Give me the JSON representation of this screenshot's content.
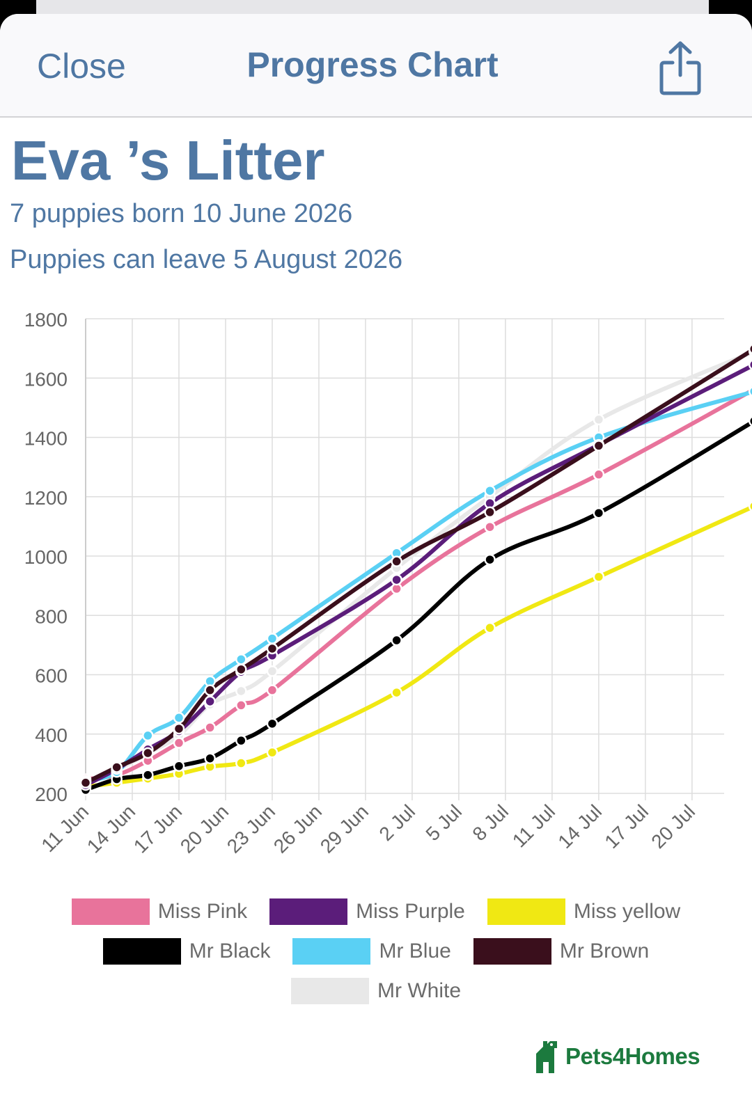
{
  "nav": {
    "close_label": "Close",
    "title": "Progress Chart",
    "share_icon": "share-icon",
    "accent_color": "#4f77a3"
  },
  "header": {
    "litter_title": "Eva ’s Litter",
    "born_text": "7 puppies born 10 June 2026",
    "leave_text": "Puppies can leave 5 August 2026"
  },
  "brand": {
    "name": "Pets4Homes",
    "logo_icon": "pets4homes-logo-icon",
    "color": "#1c7a3e"
  },
  "chart_data": {
    "type": "line",
    "title": "",
    "xlabel": "",
    "ylabel": "",
    "ylim": [
      200,
      1800
    ],
    "yticks": [
      200,
      400,
      600,
      800,
      1000,
      1200,
      1400,
      1600,
      1800
    ],
    "xlim": [
      "2026-06-11",
      "2026-07-24"
    ],
    "xtick_labels": [
      "11 Jun",
      "14 Jun",
      "17 Jun",
      "20 Jun",
      "23 Jun",
      "26 Jun",
      "29 Jun",
      "2 Jul",
      "5 Jul",
      "8 Jul",
      "11 Jul",
      "14 Jul",
      "17 Jul",
      "20 Jul"
    ],
    "xtick_dates": [
      "2026-06-11",
      "2026-06-14",
      "2026-06-17",
      "2026-06-20",
      "2026-06-23",
      "2026-06-26",
      "2026-06-29",
      "2026-07-02",
      "2026-07-05",
      "2026-07-08",
      "2026-07-11",
      "2026-07-14",
      "2026-07-17",
      "2026-07-20"
    ],
    "grid": true,
    "legend_position": "bottom",
    "series": [
      {
        "name": "Miss Pink",
        "color": "#e8739b",
        "x": [
          "2026-06-11",
          "2026-06-13",
          "2026-06-15",
          "2026-06-17",
          "2026-06-19",
          "2026-06-21",
          "2026-06-23",
          "2026-07-01",
          "2026-07-07",
          "2026-07-14",
          "2026-07-24"
        ],
        "y": [
          248,
          262,
          310,
          370,
          422,
          497,
          548,
          890,
          1098,
          1275,
          1562
        ]
      },
      {
        "name": "Miss Purple",
        "color": "#5b1d7a",
        "x": [
          "2026-06-11",
          "2026-06-13",
          "2026-06-15",
          "2026-06-17",
          "2026-06-19",
          "2026-06-21",
          "2026-06-23",
          "2026-07-01",
          "2026-07-07",
          "2026-07-14",
          "2026-07-24"
        ],
        "y": [
          228,
          282,
          348,
          410,
          510,
          610,
          665,
          920,
          1178,
          1375,
          1645
        ]
      },
      {
        "name": "Miss yellow",
        "color": "#f0e813",
        "x": [
          "2026-06-11",
          "2026-06-13",
          "2026-06-15",
          "2026-06-17",
          "2026-06-19",
          "2026-06-21",
          "2026-06-23",
          "2026-07-01",
          "2026-07-07",
          "2026-07-14",
          "2026-07-24"
        ],
        "y": [
          222,
          236,
          250,
          266,
          290,
          302,
          338,
          540,
          758,
          930,
          1168
        ]
      },
      {
        "name": "Mr Black",
        "color": "#000000",
        "x": [
          "2026-06-11",
          "2026-06-13",
          "2026-06-15",
          "2026-06-17",
          "2026-06-19",
          "2026-06-21",
          "2026-06-23",
          "2026-07-01",
          "2026-07-07",
          "2026-07-14",
          "2026-07-24"
        ],
        "y": [
          212,
          248,
          262,
          292,
          318,
          378,
          435,
          716,
          988,
          1145,
          1455
        ]
      },
      {
        "name": "Mr Blue",
        "color": "#5ad0f4",
        "x": [
          "2026-06-11",
          "2026-06-13",
          "2026-06-15",
          "2026-06-17",
          "2026-06-19",
          "2026-06-21",
          "2026-06-23",
          "2026-07-01",
          "2026-07-07",
          "2026-07-14",
          "2026-07-24"
        ],
        "y": [
          242,
          272,
          395,
          455,
          578,
          652,
          722,
          1010,
          1220,
          1400,
          1555
        ]
      },
      {
        "name": "Mr Brown",
        "color": "#3a0f1c",
        "x": [
          "2026-06-11",
          "2026-06-13",
          "2026-06-15",
          "2026-06-17",
          "2026-06-19",
          "2026-06-21",
          "2026-06-23",
          "2026-07-01",
          "2026-07-07",
          "2026-07-14",
          "2026-07-24"
        ],
        "y": [
          236,
          288,
          336,
          418,
          548,
          618,
          688,
          982,
          1148,
          1372,
          1698
        ]
      },
      {
        "name": "Mr White",
        "color": "#e8e8e8",
        "x": [
          "2026-06-11",
          "2026-06-13",
          "2026-06-15",
          "2026-06-17",
          "2026-06-19",
          "2026-06-21",
          "2026-06-23",
          "2026-07-01",
          "2026-07-07",
          "2026-07-14",
          "2026-07-24"
        ],
        "y": [
          240,
          280,
          335,
          395,
          500,
          545,
          612,
          960,
          1200,
          1460,
          1690
        ]
      }
    ]
  }
}
